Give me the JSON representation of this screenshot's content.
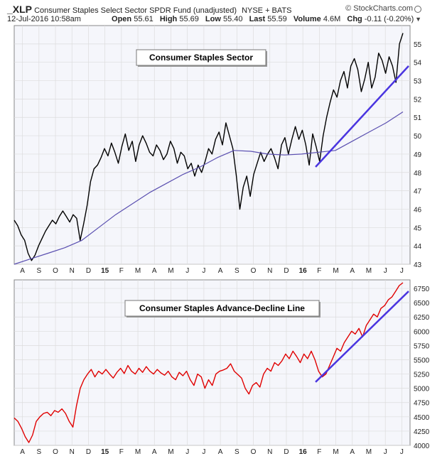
{
  "header": {
    "symbol": "_XLP",
    "name": "Consumer Staples Select Sector SPDR Fund (unadjusted)",
    "exchange": "NYSE + BATS",
    "watermark": "© StockCharts.com",
    "date": "12-Jul-2016 10:58am",
    "open_label": "Open",
    "open": "55.61",
    "high_label": "High",
    "high": "55.69",
    "low_label": "Low",
    "low": "55.40",
    "last_label": "Last",
    "last": "55.59",
    "volume_label": "Volume",
    "volume": "4.6M",
    "chg_label": "Chg",
    "chg": "-0.11 (-0.20%)"
  },
  "colors": {
    "price": "#000000",
    "moving_average": "#5a4fb0",
    "trendline": "#4a35e0",
    "ad_line": "#e00000",
    "panel_bg": "#f5f6fb",
    "grid": "#dcdcdc"
  },
  "x_axis": {
    "ticks": [
      "A",
      "S",
      "O",
      "N",
      "D",
      "15",
      "F",
      "M",
      "A",
      "M",
      "J",
      "J",
      "A",
      "S",
      "O",
      "N",
      "D",
      "16",
      "F",
      "M",
      "A",
      "M",
      "J",
      "J"
    ]
  },
  "chart_data": [
    {
      "type": "line",
      "title": "Consumer Staples Sector",
      "ylim": [
        43,
        56
      ],
      "yticks": [
        43,
        44,
        45,
        46,
        47,
        48,
        49,
        50,
        51,
        52,
        53,
        54,
        55
      ],
      "grid": true,
      "series": [
        {
          "kind": "price",
          "values": [
            45.4,
            45.1,
            44.6,
            44.3,
            43.6,
            43.2,
            43.5,
            44.0,
            44.4,
            44.8,
            45.1,
            45.4,
            45.2,
            45.6,
            45.9,
            45.6,
            45.3,
            45.7,
            45.5,
            44.3,
            45.2,
            46.2,
            47.5,
            48.2,
            48.4,
            48.8,
            49.3,
            48.9,
            49.6,
            49.1,
            48.5,
            49.4,
            50.1,
            49.2,
            49.7,
            48.6,
            49.5,
            50.0,
            49.6,
            49.1,
            48.9,
            49.5,
            49.2,
            48.7,
            49.0,
            49.7,
            49.3,
            48.5,
            49.1,
            48.9,
            48.2,
            48.5,
            47.8,
            48.4,
            48.0,
            48.6,
            49.3,
            49.0,
            49.8,
            50.2,
            49.5,
            50.7,
            50.0,
            49.3,
            47.8,
            46.0,
            47.2,
            47.8,
            46.7,
            47.9,
            48.5,
            49.1,
            48.6,
            49.0,
            49.3,
            48.8,
            48.2,
            49.5,
            49.9,
            49.0,
            49.8,
            50.5,
            49.8,
            50.3,
            49.5,
            48.4,
            50.1,
            49.4,
            48.6,
            50.0,
            51.0,
            51.8,
            52.5,
            52.1,
            53.0,
            53.5,
            52.6,
            53.8,
            54.2,
            53.6,
            52.4,
            53.1,
            54.0,
            52.6,
            53.2,
            54.5,
            54.1,
            53.4,
            54.3,
            53.8,
            52.9,
            55.0,
            55.59
          ],
          "x_range": [
            "2014-07-14",
            "2016-07-12"
          ]
        },
        {
          "kind": "moving-average",
          "values": [
            43.0,
            43.3,
            43.6,
            43.9,
            44.3,
            45.0,
            45.7,
            46.3,
            46.9,
            47.4,
            47.9,
            48.3,
            48.8,
            49.2,
            49.15,
            49.0,
            48.95,
            49.0,
            49.1,
            49.2,
            49.7,
            50.2,
            50.7,
            51.3
          ],
          "x_range": [
            "2014-07-14",
            "2016-07-12"
          ]
        }
      ],
      "trendline": {
        "from": [
          "2016-01-20",
          48.3
        ],
        "to": [
          "2016-07-12",
          53.8
        ]
      }
    },
    {
      "type": "line",
      "title": "Consumer Staples Advance-Decline Line",
      "ylim": [
        4000,
        6900
      ],
      "yticks": [
        4000,
        4250,
        4500,
        4750,
        5000,
        5250,
        5500,
        5750,
        6000,
        6250,
        6500,
        6750
      ],
      "grid": true,
      "series": [
        {
          "kind": "ad-line",
          "values": [
            4480,
            4420,
            4300,
            4150,
            4050,
            4180,
            4420,
            4500,
            4560,
            4580,
            4520,
            4610,
            4580,
            4640,
            4560,
            4420,
            4320,
            4700,
            5000,
            5150,
            5250,
            5330,
            5200,
            5300,
            5250,
            5330,
            5250,
            5180,
            5280,
            5350,
            5260,
            5400,
            5300,
            5250,
            5350,
            5280,
            5380,
            5300,
            5250,
            5330,
            5270,
            5230,
            5300,
            5200,
            5150,
            5280,
            5220,
            5300,
            5150,
            5050,
            5250,
            5200,
            5000,
            5150,
            5050,
            5250,
            5300,
            5320,
            5350,
            5430,
            5300,
            5240,
            5180,
            5000,
            4900,
            5050,
            5100,
            5020,
            5250,
            5350,
            5300,
            5450,
            5400,
            5480,
            5600,
            5520,
            5650,
            5560,
            5450,
            5600,
            5520,
            5650,
            5500,
            5300,
            5200,
            5250,
            5400,
            5550,
            5700,
            5650,
            5800,
            5900,
            6000,
            5950,
            6050,
            5900,
            6100,
            6200,
            6300,
            6250,
            6400,
            6450,
            6550,
            6600,
            6700,
            6800,
            6850
          ],
          "x_range": [
            "2014-07-14",
            "2016-07-12"
          ]
        }
      ],
      "trendline": {
        "from": [
          "2016-01-20",
          5110
        ],
        "to": [
          "2016-07-12",
          6700
        ]
      }
    }
  ]
}
